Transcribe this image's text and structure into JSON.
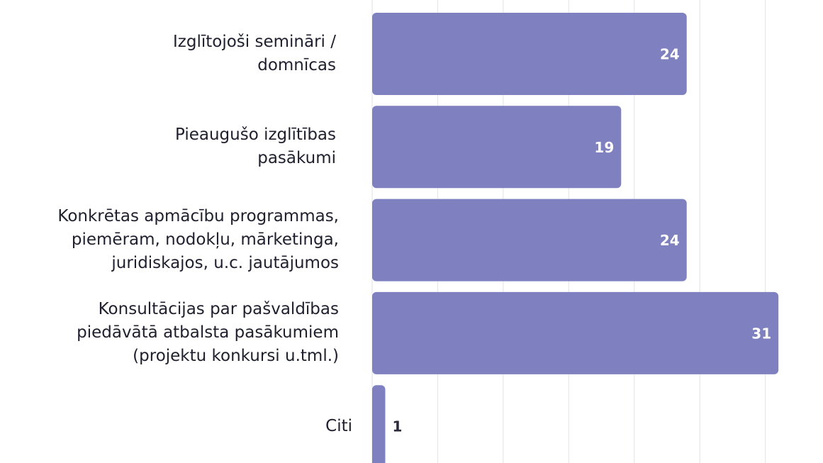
{
  "chart_data": {
    "type": "bar",
    "orientation": "horizontal",
    "categories": [
      "Izglītojoši semināri / domnīcas",
      "Pieaugušo izglītības pasākumi",
      "Konkrētas apmācību programmas, piemēram, nodokļu, mārketinga, juridiskajos, u.c. jautājumos",
      "Konsultācijas par pašvaldības piedāvātā atbalsta pasākumiem (projektu konkursi u.tml.)",
      "Citi"
    ],
    "values": [
      24,
      19,
      24,
      31,
      1
    ],
    "color": "#7f80c0",
    "xlim": [
      0,
      34.4
    ],
    "xticks": [
      0,
      5,
      10,
      15,
      20,
      25,
      30
    ],
    "grid": true
  }
}
